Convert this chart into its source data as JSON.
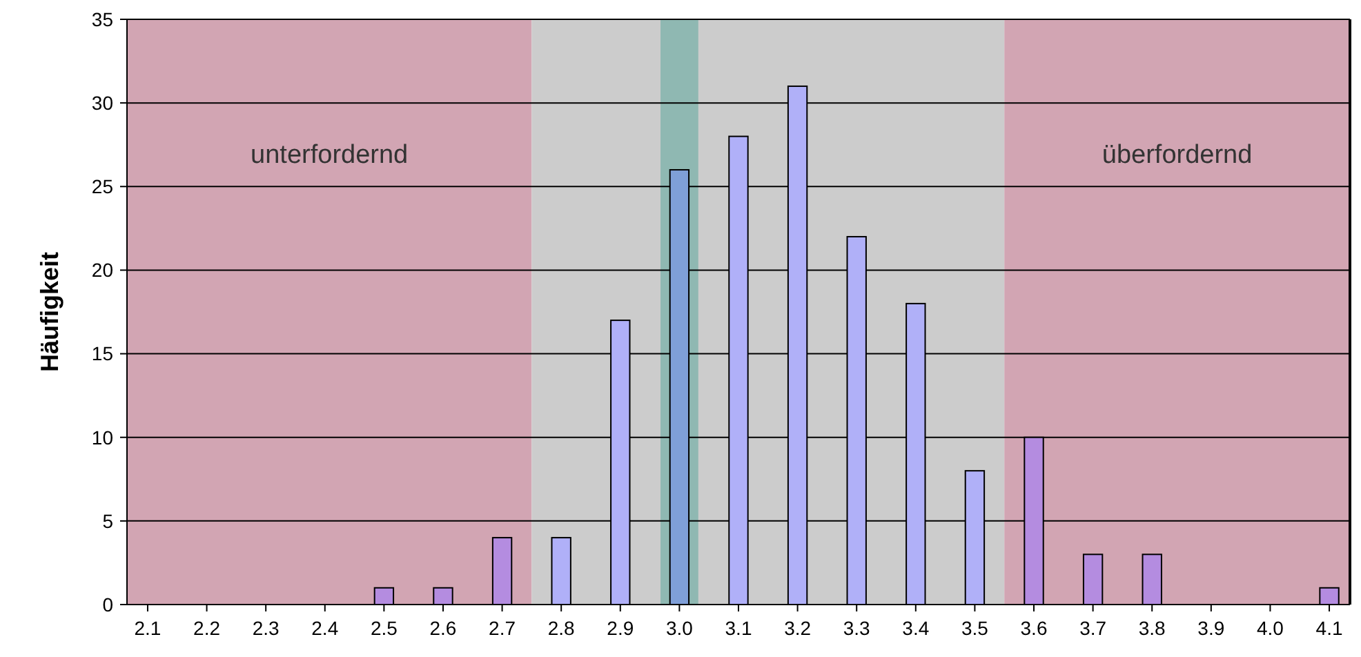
{
  "chart_data": {
    "type": "bar",
    "ylabel": "Häufigkeit",
    "x": [
      2.1,
      2.2,
      2.3,
      2.4,
      2.5,
      2.6,
      2.7,
      2.8,
      2.9,
      3.0,
      3.1,
      3.2,
      3.3,
      3.4,
      3.5,
      3.6,
      3.7,
      3.8,
      3.9,
      4.0,
      4.1
    ],
    "values": [
      0,
      0,
      0,
      0,
      1,
      1,
      4,
      4,
      17,
      26,
      28,
      31,
      22,
      18,
      8,
      10,
      3,
      3,
      0,
      0,
      1
    ],
    "colors": [
      "#b48ce0",
      "#b48ce0",
      "#b48ce0",
      "#b48ce0",
      "#b48ce0",
      "#b48ce0",
      "#b48ce0",
      "#b0b0f8",
      "#b0b0f8",
      "#7f9fd8",
      "#b0b0f8",
      "#b0b0f8",
      "#b0b0f8",
      "#b0b0f8",
      "#b0b0f8",
      "#b48ce0",
      "#b48ce0",
      "#b48ce0",
      "#b48ce0",
      "#b48ce0",
      "#b48ce0"
    ],
    "xlim": [
      2.065,
      4.135
    ],
    "xticks": [
      2.1,
      2.2,
      2.3,
      2.4,
      2.5,
      2.6,
      2.7,
      2.8,
      2.9,
      {
        "value": 3,
        "label": "3.0"
      },
      3.1,
      3.2,
      3.3,
      3.4,
      3.5,
      3.6,
      3.7,
      3.8,
      3.9,
      {
        "value": 4,
        "label": "4.0"
      },
      4.1
    ],
    "ylim": [
      0,
      35
    ],
    "yticks": [
      0,
      5,
      10,
      15,
      20,
      25,
      30,
      35
    ],
    "grid": "y",
    "bands": [
      {
        "axis": "x",
        "from": 2.065,
        "to": 2.75,
        "label": "unterfordernd",
        "color": "#d2a5b3"
      },
      {
        "axis": "x",
        "from": 2.75,
        "to": 3.55,
        "label": null,
        "color": "#cccccc"
      },
      {
        "axis": "x",
        "from": 2.968,
        "to": 3.032,
        "label": null,
        "color": "#8fb8b2"
      },
      {
        "axis": "x",
        "from": 3.55,
        "to": 4.135,
        "label": "überfordernd",
        "color": "#d2a5b3"
      }
    ]
  }
}
